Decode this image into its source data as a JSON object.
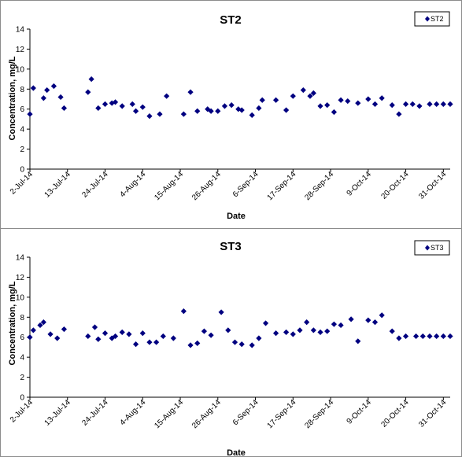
{
  "colors": {
    "marker": "#000080",
    "axis": "#000000",
    "border": "#8c8c8c",
    "background": "#ffffff"
  },
  "chart_data": [
    {
      "type": "scatter",
      "title": "ST2",
      "xlabel": "Date",
      "ylabel": "Concentration, mg/L",
      "ylim": [
        0,
        14
      ],
      "yticks": [
        0,
        2,
        4,
        6,
        8,
        10,
        12,
        14
      ],
      "xlim": [
        "2-Jul-14",
        "2-Nov-14"
      ],
      "xticks": [
        "2-Jul-14",
        "13-Jul-14",
        "24-Jul-14",
        "4-Aug-14",
        "15-Aug-14",
        "26-Aug-14",
        "6-Sep-14",
        "17-Sep-14",
        "28-Sep-14",
        "9-Oct-14",
        "20-Oct-14",
        "31-Oct-14"
      ],
      "grid": false,
      "legend": "top-right",
      "marker": "diamond",
      "series": [
        {
          "name": "ST2",
          "x": [
            "2-Jul-14",
            "3-Jul-14",
            "6-Jul-14",
            "7-Jul-14",
            "9-Jul-14",
            "11-Jul-14",
            "12-Jul-14",
            "19-Jul-14",
            "20-Jul-14",
            "22-Jul-14",
            "24-Jul-14",
            "26-Jul-14",
            "27-Jul-14",
            "29-Jul-14",
            "1-Aug-14",
            "2-Aug-14",
            "4-Aug-14",
            "6-Aug-14",
            "9-Aug-14",
            "11-Aug-14",
            "16-Aug-14",
            "18-Aug-14",
            "20-Aug-14",
            "23-Aug-14",
            "24-Aug-14",
            "26-Aug-14",
            "28-Aug-14",
            "30-Aug-14",
            "1-Sep-14",
            "2-Sep-14",
            "5-Sep-14",
            "7-Sep-14",
            "8-Sep-14",
            "12-Sep-14",
            "15-Sep-14",
            "17-Sep-14",
            "20-Sep-14",
            "22-Sep-14",
            "23-Sep-14",
            "25-Sep-14",
            "27-Sep-14",
            "29-Sep-14",
            "1-Oct-14",
            "3-Oct-14",
            "6-Oct-14",
            "9-Oct-14",
            "11-Oct-14",
            "13-Oct-14",
            "16-Oct-14",
            "18-Oct-14",
            "20-Oct-14",
            "22-Oct-14",
            "24-Oct-14",
            "27-Oct-14",
            "29-Oct-14",
            "31-Oct-14",
            "2-Nov-14"
          ],
          "y": [
            5.5,
            8.1,
            7.1,
            7.9,
            8.3,
            7.2,
            6.1,
            7.7,
            9.0,
            6.1,
            6.5,
            6.6,
            6.7,
            6.3,
            6.5,
            5.8,
            6.2,
            5.3,
            5.5,
            7.3,
            5.5,
            7.7,
            5.8,
            6.0,
            5.8,
            5.8,
            6.3,
            6.4,
            6.0,
            5.9,
            5.4,
            6.1,
            6.9,
            6.9,
            5.9,
            7.3,
            7.9,
            7.3,
            7.6,
            6.3,
            6.4,
            5.7,
            6.9,
            6.8,
            6.6,
            7.0,
            6.5,
            7.1,
            6.4,
            5.5,
            6.5,
            6.5,
            6.3,
            6.5,
            6.5,
            6.5,
            6.5
          ]
        }
      ]
    },
    {
      "type": "scatter",
      "title": "ST3",
      "xlabel": "Date",
      "ylabel": "Concentration, mg/L",
      "ylim": [
        0,
        14
      ],
      "yticks": [
        0,
        2,
        4,
        6,
        8,
        10,
        12,
        14
      ],
      "xlim": [
        "2-Jul-14",
        "2-Nov-14"
      ],
      "xticks": [
        "2-Jul-14",
        "13-Jul-14",
        "24-Jul-14",
        "4-Aug-14",
        "15-Aug-14",
        "26-Aug-14",
        "6-Sep-14",
        "17-Sep-14",
        "28-Sep-14",
        "9-Oct-14",
        "20-Oct-14",
        "31-Oct-14"
      ],
      "grid": false,
      "legend": "top-right",
      "marker": "diamond",
      "series": [
        {
          "name": "ST3",
          "x": [
            "2-Jul-14",
            "3-Jul-14",
            "5-Jul-14",
            "6-Jul-14",
            "8-Jul-14",
            "10-Jul-14",
            "12-Jul-14",
            "19-Jul-14",
            "21-Jul-14",
            "22-Jul-14",
            "24-Jul-14",
            "26-Jul-14",
            "27-Jul-14",
            "29-Jul-14",
            "31-Jul-14",
            "2-Aug-14",
            "4-Aug-14",
            "6-Aug-14",
            "8-Aug-14",
            "10-Aug-14",
            "13-Aug-14",
            "16-Aug-14",
            "18-Aug-14",
            "20-Aug-14",
            "22-Aug-14",
            "24-Aug-14",
            "27-Aug-14",
            "29-Aug-14",
            "31-Aug-14",
            "2-Sep-14",
            "5-Sep-14",
            "7-Sep-14",
            "9-Sep-14",
            "12-Sep-14",
            "15-Sep-14",
            "17-Sep-14",
            "19-Sep-14",
            "21-Sep-14",
            "23-Sep-14",
            "25-Sep-14",
            "27-Sep-14",
            "29-Sep-14",
            "1-Oct-14",
            "4-Oct-14",
            "6-Oct-14",
            "9-Oct-14",
            "11-Oct-14",
            "13-Oct-14",
            "16-Oct-14",
            "18-Oct-14",
            "20-Oct-14",
            "23-Oct-14",
            "25-Oct-14",
            "27-Oct-14",
            "29-Oct-14",
            "31-Oct-14",
            "2-Nov-14"
          ],
          "y": [
            6.0,
            6.7,
            7.2,
            7.5,
            6.3,
            5.9,
            6.8,
            6.1,
            7.0,
            5.8,
            6.4,
            5.9,
            6.1,
            6.5,
            6.3,
            5.3,
            6.4,
            5.5,
            5.5,
            6.1,
            5.9,
            8.6,
            5.2,
            5.4,
            6.6,
            6.2,
            8.5,
            6.7,
            5.5,
            5.3,
            5.2,
            5.9,
            7.4,
            6.4,
            6.5,
            6.3,
            6.7,
            7.5,
            6.7,
            6.5,
            6.6,
            7.3,
            7.2,
            7.8,
            5.6,
            7.7,
            7.5,
            8.2,
            6.6,
            5.9,
            6.1,
            6.1,
            6.1,
            6.1,
            6.1,
            6.1,
            6.1
          ]
        }
      ]
    }
  ]
}
